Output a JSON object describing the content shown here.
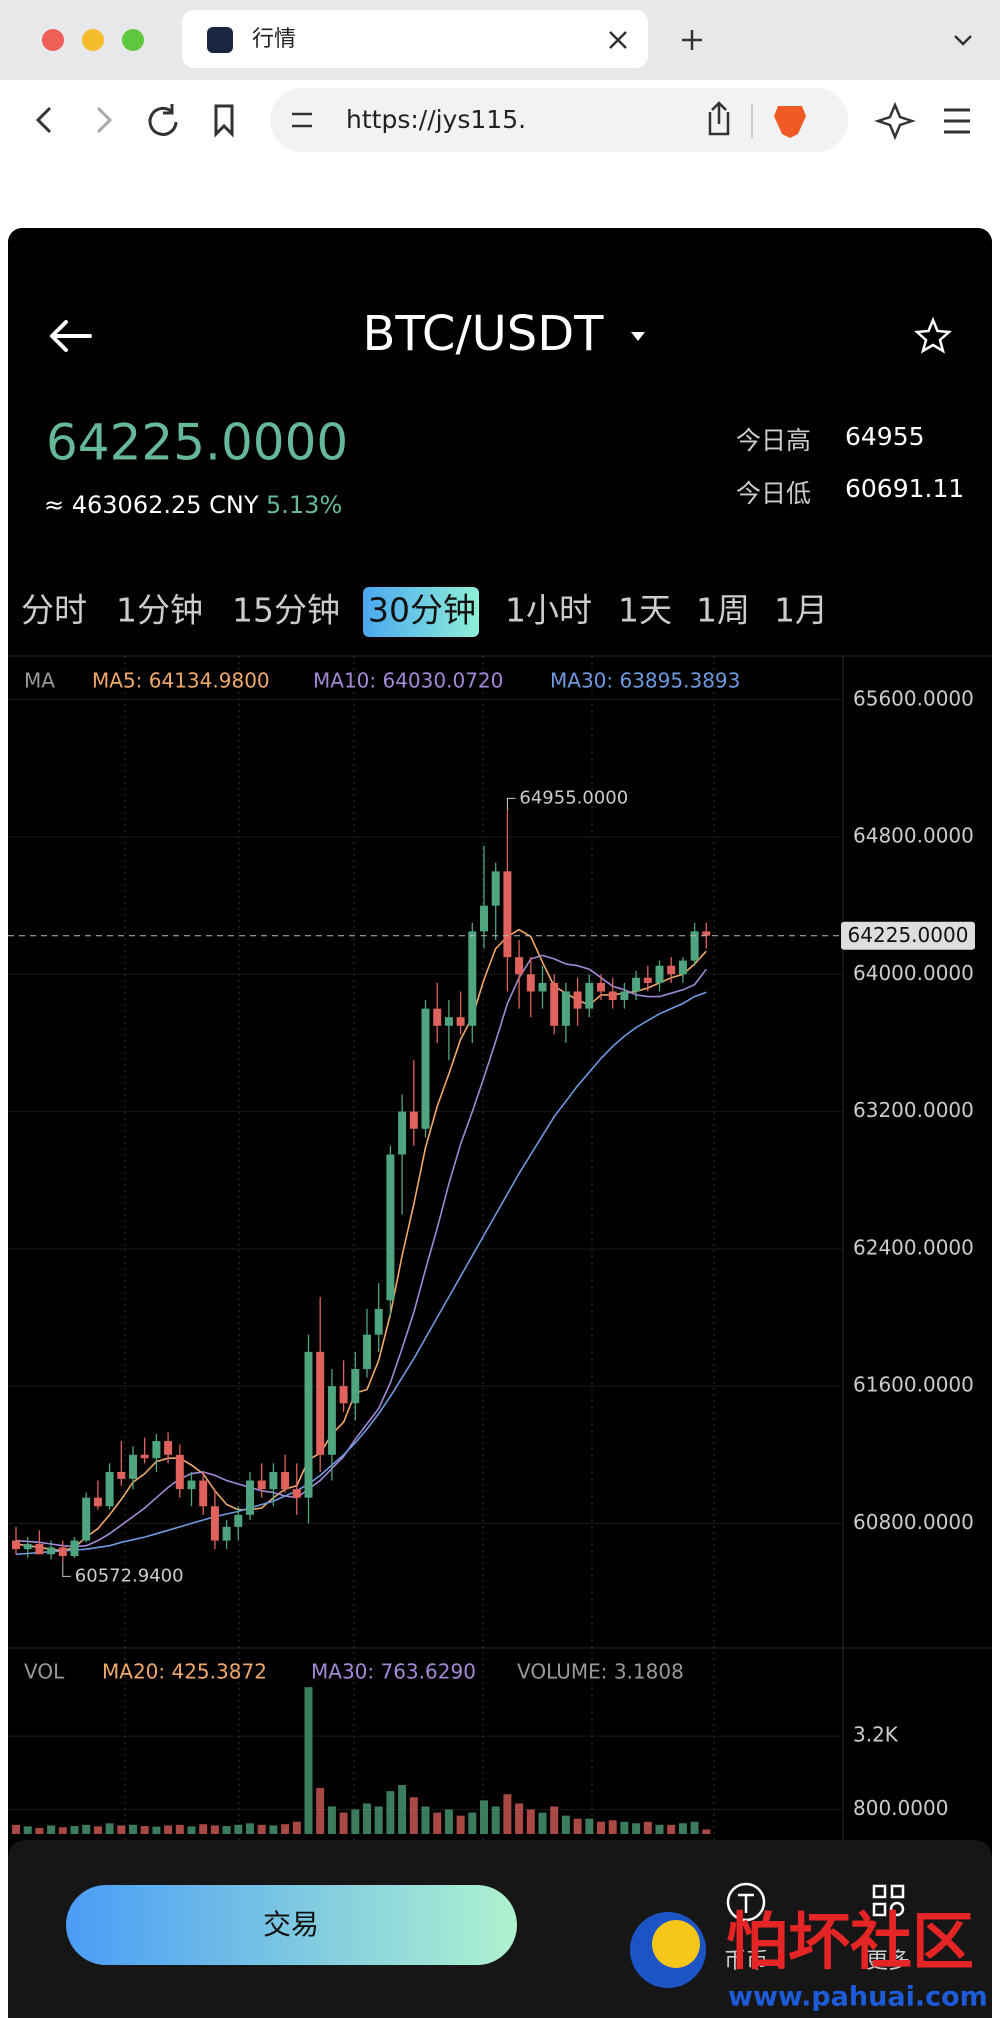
{
  "browser": {
    "tab_title": "行情",
    "url": "https://jys115."
  },
  "header": {
    "pair": "BTC/USDT",
    "price": "64225.0000",
    "cny": "≈ 463062.25 CNY",
    "change": "5.13%",
    "high_label": "今日高",
    "high": "64955",
    "low_label": "今日低",
    "low": "60691.11"
  },
  "intervals": [
    "分时",
    "1分钟",
    "15分钟",
    "30分钟",
    "1小时",
    "1天",
    "1周",
    "1月"
  ],
  "selected_interval": 3,
  "chart": {
    "type": "candlestick",
    "ma_label": "MA",
    "ma_legend": [
      "MA5: 64134.9800",
      "MA10: 64030.0720",
      "MA30: 63895.3893"
    ],
    "colors": {
      "up": "#4fa57f",
      "down": "#e0625c",
      "ma5": "#f0a96a",
      "ma10": "#a48ad6",
      "ma30": "#6f9ae0"
    },
    "ylim": [
      60074,
      65855
    ],
    "yticks": [
      {
        "value": 60800,
        "label": "60800.0000"
      },
      {
        "value": 61600,
        "label": "61600.0000"
      },
      {
        "value": 62400,
        "label": "62400.0000"
      },
      {
        "value": 63200,
        "label": "63200.0000"
      },
      {
        "value": 64000,
        "label": "64000.0000"
      },
      {
        "value": 64800,
        "label": "64800.0000"
      },
      {
        "value": 65600,
        "label": "65600.0000"
      }
    ],
    "last_price": {
      "value": 64225,
      "label": "64225.0000"
    },
    "max_label": {
      "value": 64955,
      "label": "64955.0000"
    },
    "min_label": {
      "value": 60572.94,
      "label": "60572.9400"
    },
    "candles": [
      [
        60700,
        60780,
        60620,
        60650
      ],
      [
        60650,
        60720,
        60600,
        60680
      ],
      [
        60680,
        60760,
        60640,
        60620
      ],
      [
        60620,
        60700,
        60590,
        60660
      ],
      [
        60660,
        60700,
        60572.94,
        60610
      ],
      [
        60610,
        60720,
        60600,
        60700
      ],
      [
        60700,
        60980,
        60690,
        60950
      ],
      [
        60950,
        61050,
        60880,
        60900
      ],
      [
        60900,
        61150,
        60880,
        61100
      ],
      [
        61100,
        61280,
        61020,
        61060
      ],
      [
        61060,
        61250,
        61000,
        61200
      ],
      [
        61200,
        61300,
        61150,
        61180
      ],
      [
        61180,
        61320,
        61100,
        61280
      ],
      [
        61280,
        61330,
        61150,
        61200
      ],
      [
        61200,
        61260,
        60950,
        61000
      ],
      [
        61000,
        61100,
        60900,
        61050
      ],
      [
        61050,
        61100,
        60850,
        60900
      ],
      [
        60900,
        61000,
        60650,
        60700
      ],
      [
        60700,
        60820,
        60650,
        60780
      ],
      [
        60780,
        60900,
        60700,
        60850
      ],
      [
        60850,
        61100,
        60820,
        61050
      ],
      [
        61050,
        61150,
        60950,
        61000
      ],
      [
        61000,
        61150,
        60900,
        61100
      ],
      [
        61100,
        61200,
        60980,
        61000
      ],
      [
        61000,
        61150,
        60850,
        60950
      ],
      [
        60950,
        61900,
        60800,
        61800
      ],
      [
        61800,
        62120,
        61100,
        61200
      ],
      [
        61200,
        61700,
        61050,
        61600
      ],
      [
        61600,
        61750,
        61450,
        61500
      ],
      [
        61500,
        61800,
        61400,
        61700
      ],
      [
        61700,
        62050,
        61650,
        61900
      ],
      [
        61900,
        62200,
        61800,
        62050
      ],
      [
        62100,
        63000,
        62000,
        62950
      ],
      [
        62950,
        63300,
        62600,
        63200
      ],
      [
        63200,
        63500,
        63000,
        63100
      ],
      [
        63100,
        63850,
        63050,
        63800
      ],
      [
        63800,
        63950,
        63600,
        63700
      ],
      [
        63700,
        63850,
        63500,
        63750
      ],
      [
        63750,
        63900,
        63650,
        63700
      ],
      [
        63700,
        64300,
        63600,
        64250
      ],
      [
        64250,
        64750,
        64150,
        64400
      ],
      [
        64400,
        64650,
        64200,
        64600
      ],
      [
        64600,
        64955,
        63900,
        64100
      ],
      [
        64100,
        64200,
        63800,
        64000
      ],
      [
        64000,
        64100,
        63750,
        63900
      ],
      [
        63900,
        64050,
        63800,
        63950
      ],
      [
        63950,
        64000,
        63650,
        63700
      ],
      [
        63700,
        63950,
        63600,
        63900
      ],
      [
        63900,
        63980,
        63700,
        63800
      ],
      [
        63800,
        64000,
        63750,
        63950
      ],
      [
        63950,
        64000,
        63850,
        63900
      ],
      [
        63900,
        63980,
        63800,
        63850
      ],
      [
        63850,
        63950,
        63800,
        63900
      ],
      [
        63900,
        64020,
        63850,
        63980
      ],
      [
        63980,
        64050,
        63900,
        63950
      ],
      [
        63950,
        64080,
        63900,
        64050
      ],
      [
        64050,
        64100,
        63950,
        64000
      ],
      [
        64000,
        64100,
        63950,
        64080
      ],
      [
        64080,
        64300,
        64050,
        64250
      ],
      [
        64250,
        64300,
        64150,
        64225
      ]
    ],
    "ma5": [
      60680,
      60670,
      60660,
      60650,
      60640,
      60660,
      60720,
      60770,
      60850,
      60940,
      61040,
      61090,
      61160,
      61180,
      61180,
      61140,
      61090,
      60990,
      60910,
      60880,
      60880,
      60890,
      60950,
      61000,
      61020,
      61170,
      61210,
      61320,
      61390,
      61560,
      61580,
      61750,
      62020,
      62360,
      62660,
      62990,
      63230,
      63420,
      63620,
      63750,
      63970,
      64150,
      64220,
      64260,
      64220,
      64070,
      63930,
      63890,
      63850,
      63820,
      63880,
      63880,
      63890,
      63900,
      63920,
      63950,
      63980,
      64000,
      64060,
      64135
    ],
    "ma10": [
      60700,
      60695,
      60690,
      60680,
      60670,
      60665,
      60670,
      60700,
      60740,
      60790,
      60840,
      60890,
      60950,
      61010,
      61060,
      61090,
      61100,
      61080,
      61050,
      61030,
      61010,
      60990,
      60980,
      60960,
      60950,
      61000,
      61050,
      61120,
      61190,
      61290,
      61380,
      61470,
      61620,
      61820,
      62030,
      62280,
      62520,
      62780,
      63010,
      63200,
      63400,
      63610,
      63830,
      63980,
      64090,
      64110,
      64090,
      64060,
      64050,
      64030,
      63980,
      63930,
      63910,
      63880,
      63870,
      63870,
      63890,
      63910,
      63940,
      64030
    ],
    "ma30": [
      60620,
      60625,
      60630,
      60635,
      60640,
      60645,
      60650,
      60660,
      60670,
      60690,
      60705,
      60720,
      60740,
      60760,
      60780,
      60800,
      60820,
      60840,
      60855,
      60870,
      60890,
      60910,
      60930,
      60960,
      60990,
      61030,
      61080,
      61140,
      61200,
      61270,
      61350,
      61440,
      61540,
      61650,
      61760,
      61880,
      62000,
      62120,
      62240,
      62360,
      62480,
      62600,
      62720,
      62840,
      62950,
      63060,
      63170,
      63260,
      63350,
      63430,
      63510,
      63580,
      63640,
      63690,
      63730,
      63770,
      63800,
      63830,
      63870,
      63895
    ]
  },
  "volume": {
    "label": "VOL",
    "legend": [
      "MA20: 425.3872",
      "MA30: 763.6290",
      "VOLUME: 3.1808"
    ],
    "ylim": [
      0,
      5000
    ],
    "yticks": [
      {
        "value": 800,
        "label": "800.0000"
      },
      {
        "value": 3200,
        "label": "3.2K"
      }
    ],
    "values": [
      300,
      250,
      200,
      280,
      220,
      260,
      300,
      250,
      350,
      280,
      300,
      260,
      240,
      280,
      300,
      250,
      320,
      280,
      260,
      300,
      350,
      300,
      280,
      320,
      400,
      4800,
      1500,
      900,
      700,
      800,
      1000,
      900,
      1400,
      1600,
      1200,
      900,
      700,
      800,
      600,
      700,
      1100,
      900,
      1300,
      1000,
      800,
      700,
      900,
      600,
      500,
      500,
      400,
      450,
      400,
      350,
      400,
      300,
      300,
      350,
      400,
      150
    ]
  },
  "footer": {
    "trade": "交易",
    "tabs": [
      "币币",
      "更多"
    ]
  },
  "watermark": {
    "name": "怕坏社区",
    "url": "www.pahuai.com"
  }
}
